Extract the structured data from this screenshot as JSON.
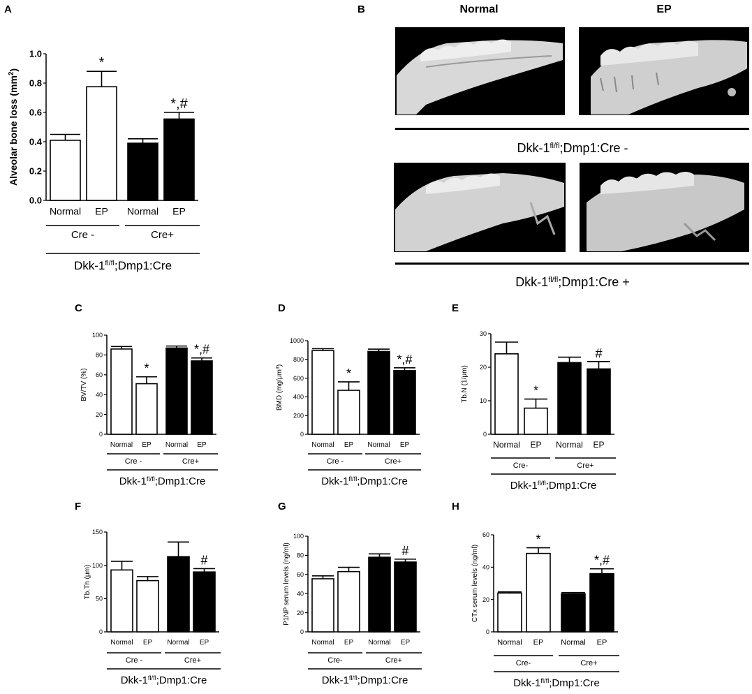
{
  "figure": {
    "micro": {
      "letter": "B",
      "col_headers": [
        "Normal",
        "EP"
      ],
      "row_labels": [
        {
          "base": "Dkk-1",
          "sup": "fl/fl",
          "rest": ";Dmp1:Cre -"
        },
        {
          "base": "Dkk-1",
          "sup": "fl/fl",
          "rest": ";Dmp1:Cre +"
        }
      ]
    }
  },
  "chart_data": [
    {
      "id": "A",
      "letter": "A",
      "type": "bar",
      "categories": [
        "Normal",
        "EP",
        "Normal",
        "EP"
      ],
      "values": [
        0.41,
        0.775,
        0.39,
        0.555
      ],
      "errors": [
        0.04,
        0.105,
        0.03,
        0.045
      ],
      "annotations": [
        "",
        "*",
        "",
        "*,#"
      ],
      "fills": [
        "#ffffff",
        "#ffffff",
        "#000000",
        "#000000"
      ],
      "ylabel": "Alveolar bone loss (mm²)",
      "ylabel_parts": [
        "Alveolar bone loss (mm",
        "2",
        ")"
      ],
      "ylim": [
        0,
        1.0
      ],
      "yticks": [
        "0.0",
        "0.2",
        "0.4",
        "0.6",
        "0.8",
        "1.0"
      ],
      "groups": [
        "Cre -",
        "Cre+"
      ],
      "genotype": {
        "base": "Dkk-1",
        "sup": "fl/fl",
        "rest": ";Dmp1:Cre"
      }
    },
    {
      "id": "C",
      "letter": "C",
      "type": "bar",
      "categories": [
        "Normal",
        "EP",
        "Normal",
        "EP"
      ],
      "values": [
        86,
        51,
        87,
        74
      ],
      "errors": [
        2.5,
        7,
        2,
        3
      ],
      "annotations": [
        "",
        "*",
        "",
        "*,#"
      ],
      "fills": [
        "#ffffff",
        "#ffffff",
        "#000000",
        "#000000"
      ],
      "ylabel": "BV/TV (%)",
      "ylim": [
        0,
        100
      ],
      "yticks": [
        "0",
        "20",
        "40",
        "60",
        "80",
        "100"
      ],
      "groups": [
        "Cre -",
        "Cre+"
      ],
      "genotype": {
        "base": "Dkk-1",
        "sup": "fl/fl",
        "rest": ";Dmp1:Cre"
      }
    },
    {
      "id": "D",
      "letter": "D",
      "type": "bar",
      "categories": [
        "Normal",
        "EP",
        "Normal",
        "EP"
      ],
      "values": [
        895,
        470,
        885,
        680
      ],
      "errors": [
        20,
        90,
        25,
        30
      ],
      "annotations": [
        "",
        "*",
        "",
        "*,#"
      ],
      "fills": [
        "#ffffff",
        "#ffffff",
        "#000000",
        "#000000"
      ],
      "ylabel": "BMD (mg/μm³)",
      "ylabel_parts": [
        "BMD (mg/μm",
        "3",
        ")"
      ],
      "ylim": [
        0,
        1000
      ],
      "yticks": [
        "0",
        "200",
        "400",
        "600",
        "800",
        "1000"
      ],
      "groups": [
        "Cre -",
        "Cre+"
      ],
      "genotype": {
        "base": "Dkk-1",
        "sup": "fl/fl",
        "rest": ";Dmp1:Cre"
      }
    },
    {
      "id": "E",
      "letter": "E",
      "type": "bar",
      "categories": [
        "Normal",
        "EP",
        "Normal",
        "EP"
      ],
      "values": [
        24,
        7.8,
        21.4,
        19.5
      ],
      "errors": [
        3.5,
        2.7,
        1.6,
        2.2
      ],
      "annotations": [
        "",
        "*",
        "",
        "#"
      ],
      "fills": [
        "#ffffff",
        "#ffffff",
        "#000000",
        "#000000"
      ],
      "ylabel": "Tb.N (1/μm)",
      "ylim": [
        0,
        30
      ],
      "yticks": [
        "0",
        "10",
        "20",
        "30"
      ],
      "groups": [
        "Cre-",
        "Cre+"
      ],
      "genotype": {
        "base": "Dkk-1",
        "sup": "fl/fl",
        "rest": ";Dmp1:Cre"
      }
    },
    {
      "id": "F",
      "letter": "F",
      "type": "bar",
      "categories": [
        "Normal",
        "EP",
        "Normal",
        "EP"
      ],
      "values": [
        93,
        77,
        113,
        90
      ],
      "errors": [
        13,
        6,
        22,
        5
      ],
      "annotations": [
        "",
        "",
        "",
        "#"
      ],
      "fills": [
        "#ffffff",
        "#ffffff",
        "#000000",
        "#000000"
      ],
      "ylabel": "Tb.Th (μm)",
      "ylim": [
        0,
        150
      ],
      "yticks": [
        "0",
        "50",
        "100",
        "150"
      ],
      "groups": [
        "Cre -",
        "Cre+"
      ],
      "genotype": {
        "base": "Dkk-1",
        "sup": "fl/fl",
        "rest": ";Dmp1:Cre"
      }
    },
    {
      "id": "G",
      "letter": "G",
      "type": "bar",
      "categories": [
        "Normal",
        "EP",
        "Normal",
        "EP"
      ],
      "values": [
        55.5,
        63,
        78,
        73
      ],
      "errors": [
        3,
        4.5,
        3.5,
        3
      ],
      "annotations": [
        "",
        "",
        "",
        "#"
      ],
      "fills": [
        "#ffffff",
        "#ffffff",
        "#000000",
        "#000000"
      ],
      "ylabel": "P1NP serum levels (ng/ml)",
      "ylim": [
        0,
        100
      ],
      "yticks": [
        "0",
        "20",
        "40",
        "60",
        "80",
        "100"
      ],
      "groups": [
        "Cre-",
        "Cre+"
      ],
      "genotype": {
        "base": "Dkk-1",
        "sup": "fl/fl",
        "rest": ";Dmp1:Cre"
      }
    },
    {
      "id": "H",
      "letter": "H",
      "type": "bar",
      "categories": [
        "Normal",
        "EP",
        "Normal",
        "EP"
      ],
      "values": [
        24,
        48.5,
        23.5,
        36
      ],
      "errors": [
        0.7,
        3.5,
        0.8,
        3
      ],
      "annotations": [
        "",
        "*",
        "",
        "*,#"
      ],
      "fills": [
        "#ffffff",
        "#ffffff",
        "#000000",
        "#000000"
      ],
      "ylabel": "CTx serum levels (ng/ml)",
      "ylim": [
        0,
        60
      ],
      "yticks": [
        "0",
        "20",
        "40",
        "60"
      ],
      "groups": [
        "Cre-",
        "Cre+"
      ],
      "genotype": {
        "base": "Dkk-1",
        "sup": "fl/fl",
        "rest": ";Dmp1:Cre"
      }
    }
  ]
}
